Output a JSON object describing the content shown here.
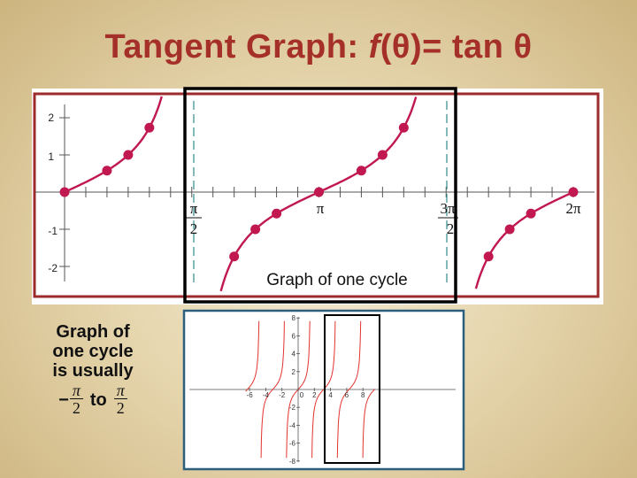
{
  "title": {
    "prefix": "Tangent Graph:  ",
    "func": "f",
    "arg": "(θ)",
    "rest": "= tan θ"
  },
  "main_chart": {
    "annotation": "Graph of one cycle",
    "y_ticks": [
      "2",
      "1",
      "-1",
      "-2"
    ],
    "x_labels": [
      {
        "num": "π",
        "den": "2"
      },
      {
        "sym": "π"
      },
      {
        "num": "3π",
        "den": "2"
      },
      {
        "sym": "2π"
      }
    ]
  },
  "note": {
    "lines": [
      "Graph of",
      "one cycle",
      "is usually"
    ],
    "sign": "−",
    "num": "π",
    "den": "2",
    "to": "to"
  },
  "chart_data": [
    {
      "type": "line",
      "function": "tan(θ)",
      "x_unit": "radians",
      "xlim": [
        0,
        6.2832
      ],
      "ylim": [
        -2,
        2
      ],
      "y_ticks": [
        2,
        1,
        -1,
        -2
      ],
      "x_tick_labels": [
        "π/2",
        "π",
        "3π/2",
        "2π"
      ],
      "asymptotes": [
        "π/2",
        "3π/2"
      ],
      "highlighted_cycle": [
        "π/2",
        "3π/2"
      ],
      "annotation": "Graph of one cycle",
      "points": [
        {
          "x": 0,
          "y": 0
        },
        {
          "x": 0.5236,
          "y": 0.577
        },
        {
          "x": 0.7854,
          "y": 1
        },
        {
          "x": 1.0472,
          "y": 1.732
        },
        {
          "x": 2.0944,
          "y": -1.732
        },
        {
          "x": 2.3562,
          "y": -1
        },
        {
          "x": 2.618,
          "y": -0.577
        },
        {
          "x": 3.1416,
          "y": 0
        },
        {
          "x": 3.6652,
          "y": 0.577
        },
        {
          "x": 3.927,
          "y": 1
        },
        {
          "x": 4.1888,
          "y": 1.732
        },
        {
          "x": 5.236,
          "y": -1.732
        },
        {
          "x": 5.4978,
          "y": -1
        },
        {
          "x": 5.7596,
          "y": -0.577
        },
        {
          "x": 6.2832,
          "y": 0
        }
      ],
      "grid": false
    },
    {
      "type": "line",
      "function": "tan(x)",
      "xlim": [
        -6.5,
        9.5
      ],
      "ylim": [
        -8,
        8
      ],
      "x_ticks": [
        -6,
        -4,
        -2,
        0,
        2,
        4,
        6,
        8
      ],
      "y_ticks": [
        8,
        6,
        4,
        2,
        -2,
        -4,
        -6,
        -8
      ],
      "highlighted_cycle": [
        1.5708,
        4.7124
      ],
      "grid": false
    }
  ]
}
